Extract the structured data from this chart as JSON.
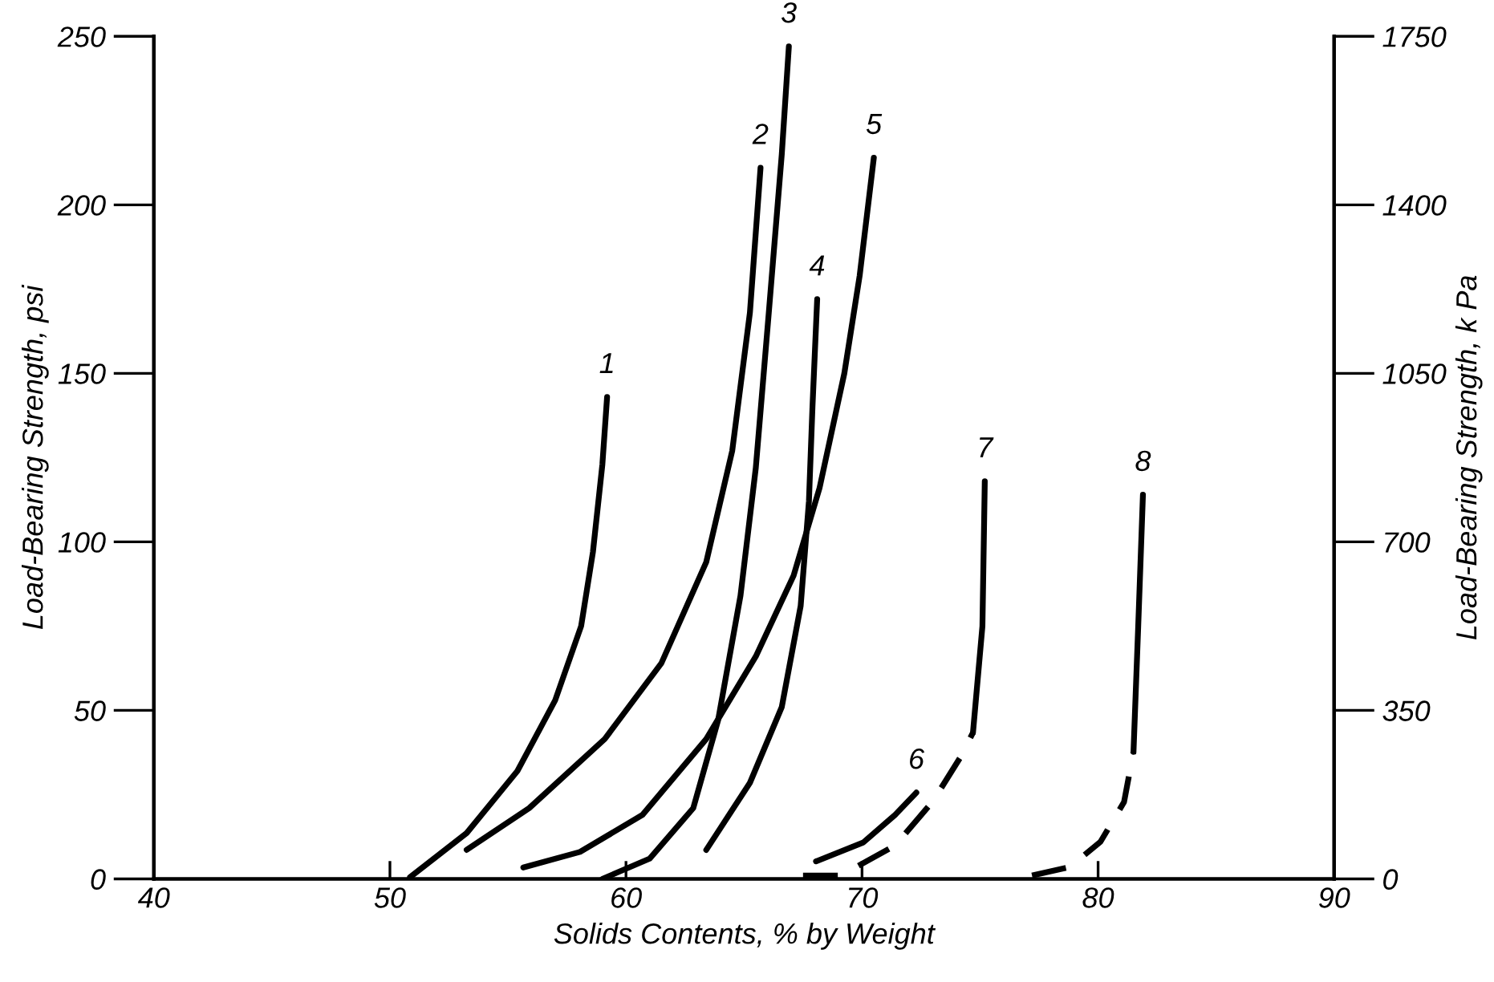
{
  "chart_data": {
    "type": "line",
    "xlabel": "Solids Contents, % by Weight",
    "ylabel": "Load-Bearing Strength, psi",
    "y2label": "Load-Bearing Strength, k Pa",
    "xlim": [
      40,
      90
    ],
    "xticks": [
      40,
      50,
      60,
      70,
      80,
      90
    ],
    "ylim": [
      0,
      250
    ],
    "yticks": [
      0,
      50,
      100,
      150,
      200,
      250
    ],
    "y2lim": [
      0,
      1750
    ],
    "y2ticks": [
      0,
      350,
      700,
      1050,
      1400,
      1750
    ],
    "grid": false,
    "legend": false,
    "marker": "none",
    "series": [
      {
        "name": "1",
        "color": "#000000",
        "line_style": "solid",
        "x": [
          50.85,
          53.25,
          55.4,
          57.0,
          58.1,
          58.6,
          59.0,
          59.2
        ],
        "values": [
          0.5,
          13.6,
          32,
          53,
          75,
          97,
          123,
          143
        ]
      },
      {
        "name": "2",
        "color": "#000000",
        "line_style": "solid",
        "x": [
          53.25,
          55.9,
          59.1,
          61.5,
          63.4,
          64.5,
          65.25,
          65.7
        ],
        "values": [
          8.6,
          21,
          41.5,
          64,
          94,
          127,
          168,
          211
        ]
      },
      {
        "name": "3",
        "color": "#000000",
        "line_style": "solid",
        "x": [
          59.0,
          61.0,
          62.85,
          63.9,
          64.85,
          65.5,
          66.05,
          66.6,
          66.9
        ],
        "values": [
          0,
          6,
          21,
          47,
          84,
          122,
          168,
          215,
          247
        ]
      },
      {
        "name": "4",
        "color": "#000000",
        "line_style": "solid",
        "x": [
          63.4,
          65.25,
          66.6,
          67.4,
          67.75,
          67.9,
          68.1
        ],
        "values": [
          8.6,
          28.5,
          51,
          81,
          112,
          140,
          172
        ]
      },
      {
        "name": "5",
        "color": "#000000",
        "line_style": "solid",
        "x": [
          55.65,
          58.05,
          60.7,
          63.4,
          65.5,
          67.1,
          68.2,
          69.25,
          69.9,
          70.5
        ],
        "values": [
          3.4,
          8,
          19,
          41.5,
          66,
          90,
          116,
          150,
          179,
          214
        ]
      },
      {
        "name": "6",
        "color": "#000000",
        "line_style": "solid",
        "x": [
          68.05,
          70.05,
          71.4,
          72.3
        ],
        "values": [
          5.2,
          10.8,
          19,
          25.6
        ]
      },
      {
        "color": "#000000",
        "line_style": "dashed",
        "x": [
          67.5,
          69.1,
          71.4,
          73.0,
          74.15,
          74.7
        ],
        "values": [
          1,
          1,
          9.9,
          23,
          35.9,
          43.4
        ]
      },
      {
        "name": "7",
        "color": "#000000",
        "line_style": "solid",
        "x": [
          74.7,
          75.1,
          75.2
        ],
        "values": [
          43.4,
          75,
          118
        ]
      },
      {
        "color": "#000000",
        "line_style": "dashed",
        "x": [
          77.2,
          78.8,
          80.1,
          81.1,
          81.5
        ],
        "values": [
          1,
          3.5,
          11,
          22.8,
          37.7
        ]
      },
      {
        "name": "8",
        "color": "#000000",
        "line_style": "solid",
        "x": [
          81.5,
          81.7,
          81.9
        ],
        "values": [
          37.7,
          75,
          114
        ]
      }
    ]
  }
}
